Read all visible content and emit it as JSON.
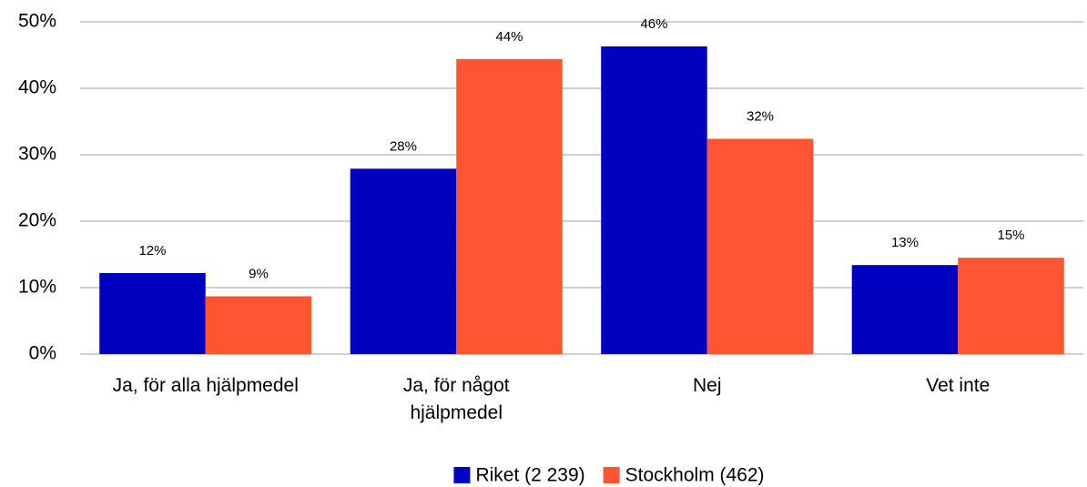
{
  "chart_data": {
    "type": "bar",
    "categories": [
      "Ja, för alla hjälpmedel",
      "Ja, för något hjälpmedel",
      "Nej",
      "Vet inte"
    ],
    "series": [
      {
        "name": "Riket (2 239)",
        "color": "#0000c0",
        "values": [
          12.2,
          27.9,
          46.3,
          13.4
        ],
        "value_labels": [
          "12%",
          "28%",
          "46%",
          "13%"
        ]
      },
      {
        "name": "Stockholm (462)",
        "color": "#ff5533",
        "values": [
          8.7,
          44.4,
          32.4,
          14.5
        ],
        "value_labels": [
          "9%",
          "44%",
          "32%",
          "15%"
        ]
      }
    ],
    "ylim": [
      0,
      50
    ],
    "yticks": [
      {
        "value": 0,
        "label": "0%"
      },
      {
        "value": 10,
        "label": "10%"
      },
      {
        "value": 20,
        "label": "20%"
      },
      {
        "value": 30,
        "label": "30%"
      },
      {
        "value": 40,
        "label": "40%"
      },
      {
        "value": 50,
        "label": "50%"
      }
    ],
    "grid": true,
    "legend": "bottom"
  }
}
